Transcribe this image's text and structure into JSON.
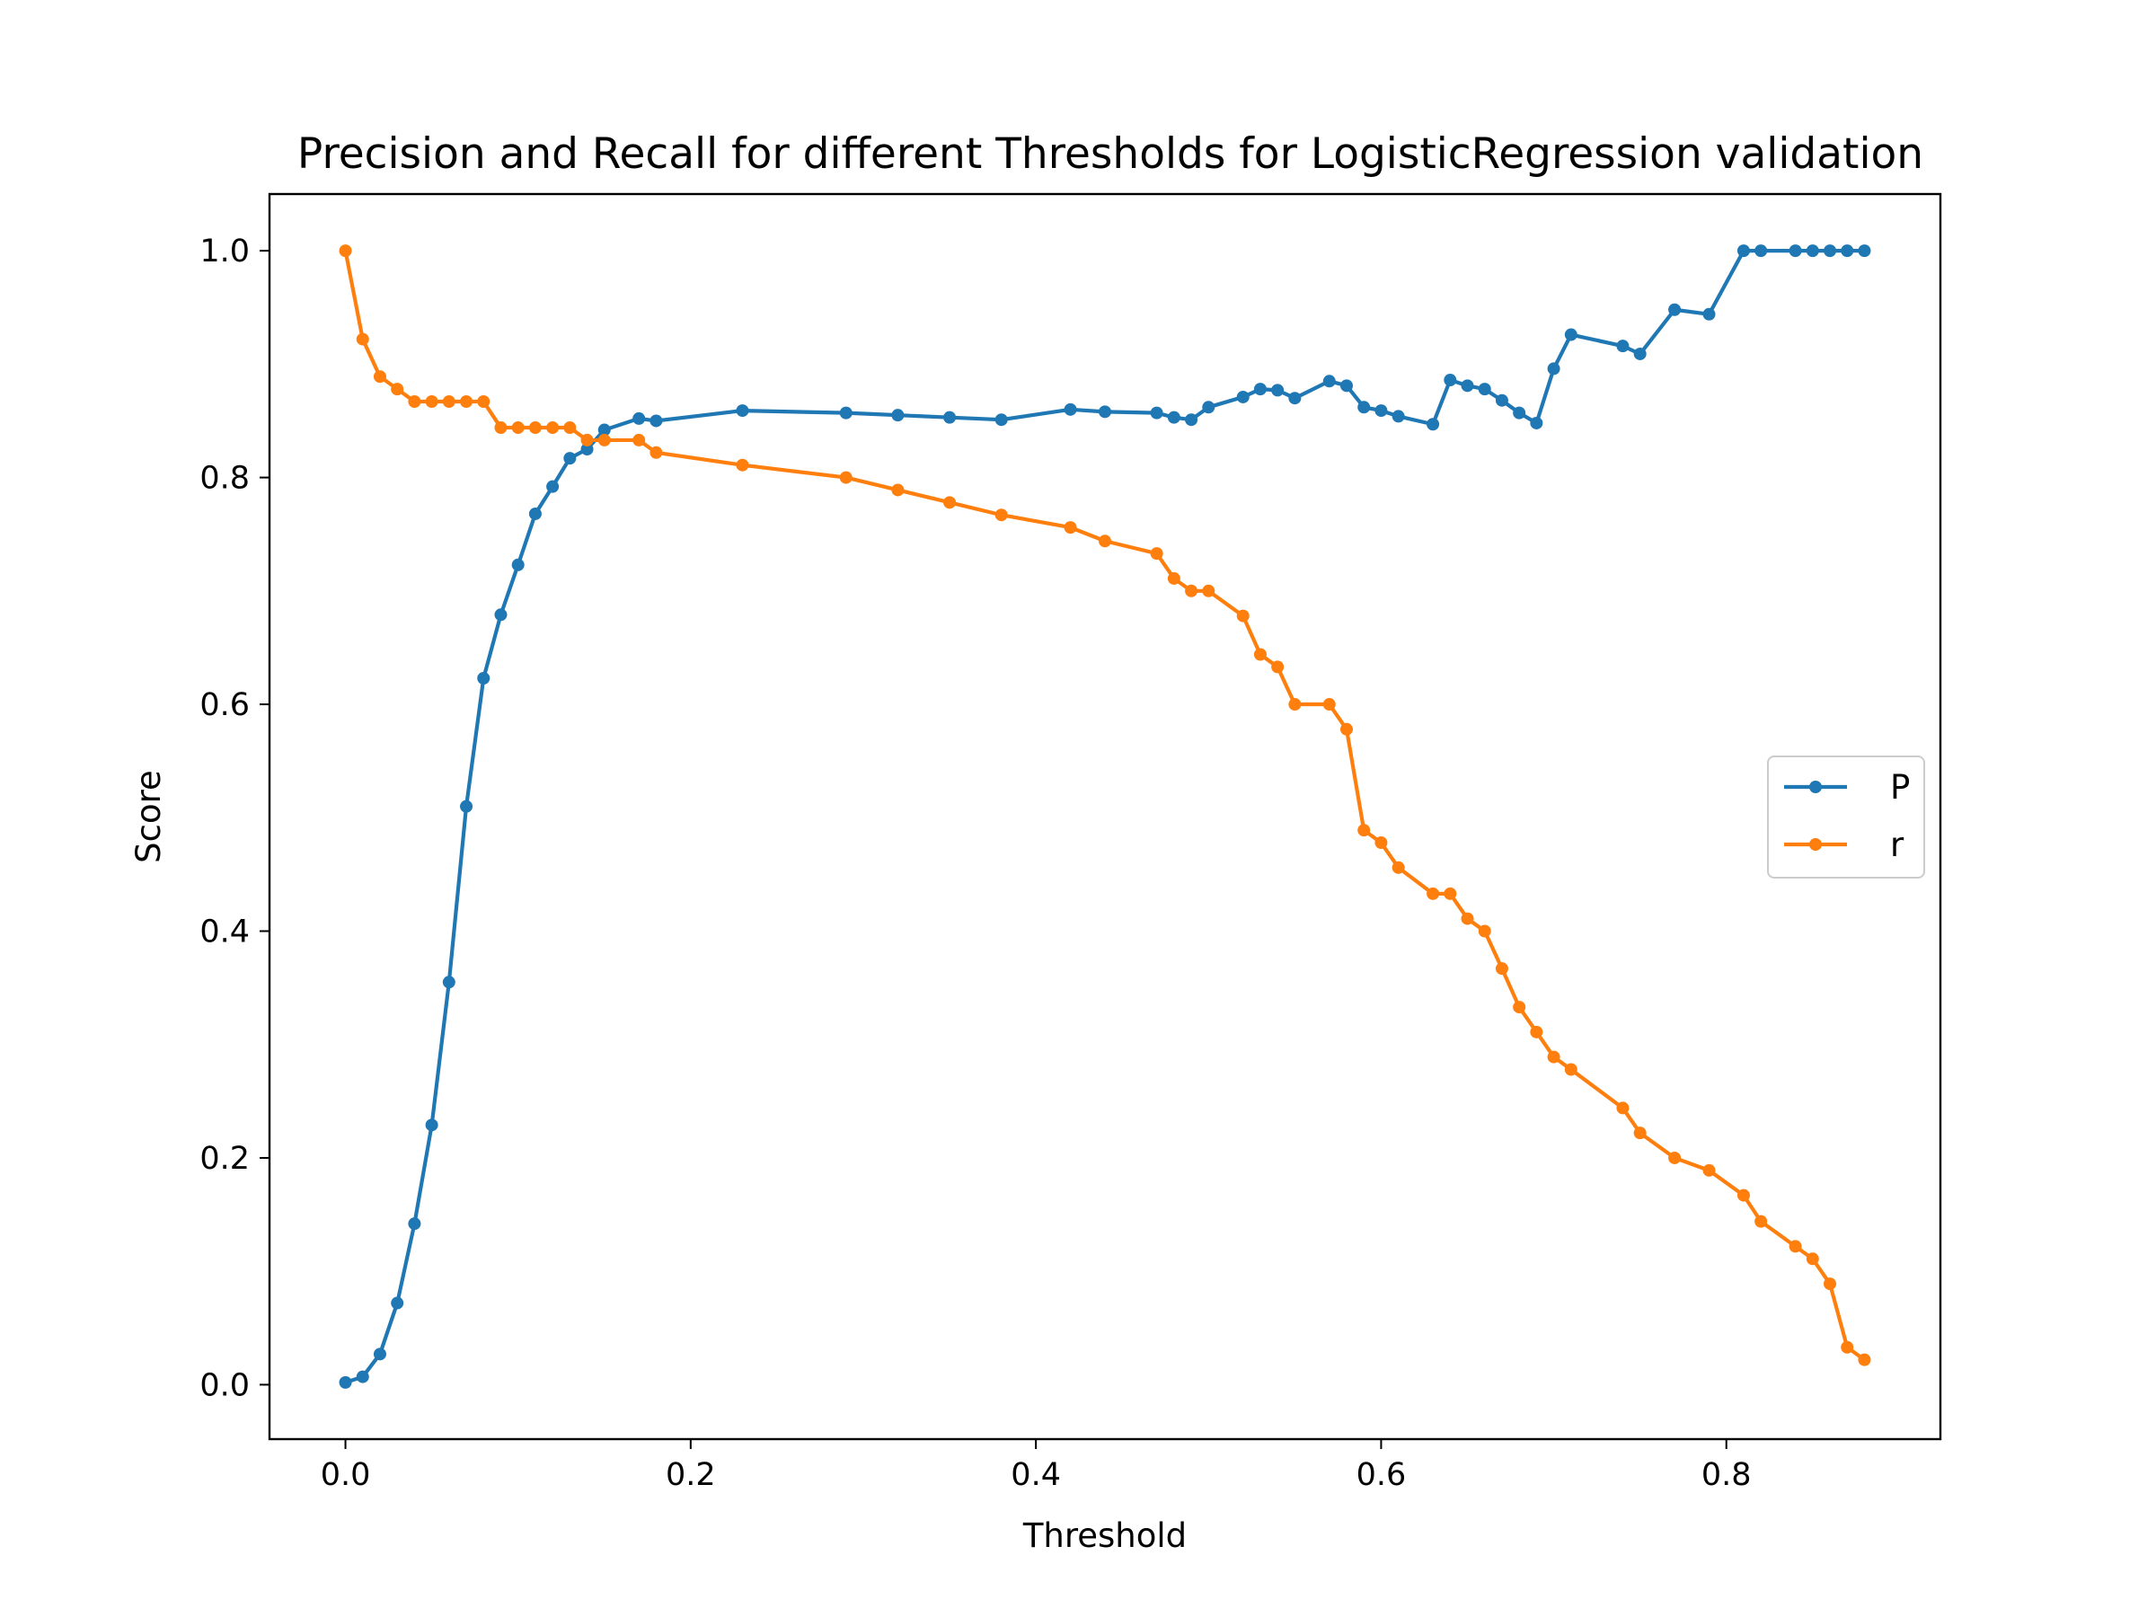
{
  "chart_data": {
    "type": "line",
    "title": "Precision and Recall for different Thresholds for LogisticRegression validation",
    "xlabel": "Threshold",
    "ylabel": "Score",
    "xlim": [
      -0.044,
      0.924
    ],
    "ylim": [
      -0.048,
      1.05
    ],
    "x_ticks": [
      "0.0",
      "0.2",
      "0.4",
      "0.6",
      "0.8"
    ],
    "y_ticks": [
      "0.0",
      "0.2",
      "0.4",
      "0.6",
      "0.8",
      "1.0"
    ],
    "grid": false,
    "legend_position": "center-right",
    "series": [
      {
        "name": "P",
        "color": "#1f77b4",
        "marker": "circle",
        "points": [
          [
            0.0,
            0.002
          ],
          [
            0.01,
            0.007
          ],
          [
            0.02,
            0.027
          ],
          [
            0.03,
            0.072
          ],
          [
            0.04,
            0.142
          ],
          [
            0.05,
            0.229
          ],
          [
            0.06,
            0.355
          ],
          [
            0.07,
            0.51
          ],
          [
            0.08,
            0.623
          ],
          [
            0.09,
            0.679
          ],
          [
            0.1,
            0.723
          ],
          [
            0.11,
            0.768
          ],
          [
            0.12,
            0.792
          ],
          [
            0.13,
            0.817
          ],
          [
            0.14,
            0.825
          ],
          [
            0.15,
            0.842
          ],
          [
            0.17,
            0.852
          ],
          [
            0.18,
            0.85
          ],
          [
            0.23,
            0.859
          ],
          [
            0.29,
            0.857
          ],
          [
            0.32,
            0.855
          ],
          [
            0.35,
            0.853
          ],
          [
            0.38,
            0.851
          ],
          [
            0.42,
            0.86
          ],
          [
            0.44,
            0.858
          ],
          [
            0.47,
            0.857
          ],
          [
            0.48,
            0.853
          ],
          [
            0.49,
            0.851
          ],
          [
            0.5,
            0.862
          ],
          [
            0.52,
            0.871
          ],
          [
            0.53,
            0.878
          ],
          [
            0.54,
            0.877
          ],
          [
            0.55,
            0.87
          ],
          [
            0.57,
            0.885
          ],
          [
            0.58,
            0.881
          ],
          [
            0.59,
            0.862
          ],
          [
            0.6,
            0.859
          ],
          [
            0.61,
            0.854
          ],
          [
            0.63,
            0.847
          ],
          [
            0.64,
            0.886
          ],
          [
            0.65,
            0.881
          ],
          [
            0.66,
            0.878
          ],
          [
            0.67,
            0.868
          ],
          [
            0.68,
            0.857
          ],
          [
            0.69,
            0.848
          ],
          [
            0.7,
            0.896
          ],
          [
            0.71,
            0.926
          ],
          [
            0.74,
            0.916
          ],
          [
            0.75,
            0.909
          ],
          [
            0.77,
            0.948
          ],
          [
            0.79,
            0.944
          ],
          [
            0.81,
            1.0
          ],
          [
            0.82,
            1.0
          ],
          [
            0.84,
            1.0
          ],
          [
            0.85,
            1.0
          ],
          [
            0.86,
            1.0
          ],
          [
            0.87,
            1.0
          ],
          [
            0.88,
            1.0
          ]
        ]
      },
      {
        "name": "r",
        "color": "#ff7f0e",
        "marker": "circle",
        "points": [
          [
            0.0,
            1.0
          ],
          [
            0.01,
            0.922
          ],
          [
            0.02,
            0.889
          ],
          [
            0.03,
            0.878
          ],
          [
            0.04,
            0.867
          ],
          [
            0.05,
            0.867
          ],
          [
            0.06,
            0.867
          ],
          [
            0.07,
            0.867
          ],
          [
            0.08,
            0.867
          ],
          [
            0.09,
            0.844
          ],
          [
            0.1,
            0.844
          ],
          [
            0.11,
            0.844
          ],
          [
            0.12,
            0.844
          ],
          [
            0.13,
            0.844
          ],
          [
            0.14,
            0.833
          ],
          [
            0.15,
            0.833
          ],
          [
            0.17,
            0.833
          ],
          [
            0.18,
            0.822
          ],
          [
            0.23,
            0.811
          ],
          [
            0.29,
            0.8
          ],
          [
            0.32,
            0.789
          ],
          [
            0.35,
            0.778
          ],
          [
            0.38,
            0.767
          ],
          [
            0.42,
            0.756
          ],
          [
            0.44,
            0.744
          ],
          [
            0.47,
            0.733
          ],
          [
            0.48,
            0.711
          ],
          [
            0.49,
            0.7
          ],
          [
            0.5,
            0.7
          ],
          [
            0.52,
            0.678
          ],
          [
            0.53,
            0.644
          ],
          [
            0.54,
            0.633
          ],
          [
            0.55,
            0.6
          ],
          [
            0.57,
            0.6
          ],
          [
            0.58,
            0.578
          ],
          [
            0.59,
            0.489
          ],
          [
            0.6,
            0.478
          ],
          [
            0.61,
            0.456
          ],
          [
            0.63,
            0.433
          ],
          [
            0.64,
            0.433
          ],
          [
            0.65,
            0.411
          ],
          [
            0.66,
            0.4
          ],
          [
            0.67,
            0.367
          ],
          [
            0.68,
            0.333
          ],
          [
            0.69,
            0.311
          ],
          [
            0.7,
            0.289
          ],
          [
            0.71,
            0.278
          ],
          [
            0.74,
            0.244
          ],
          [
            0.75,
            0.222
          ],
          [
            0.77,
            0.2
          ],
          [
            0.79,
            0.189
          ],
          [
            0.81,
            0.167
          ],
          [
            0.82,
            0.144
          ],
          [
            0.84,
            0.122
          ],
          [
            0.85,
            0.111
          ],
          [
            0.86,
            0.089
          ],
          [
            0.87,
            0.033
          ],
          [
            0.88,
            0.022
          ]
        ]
      }
    ]
  }
}
